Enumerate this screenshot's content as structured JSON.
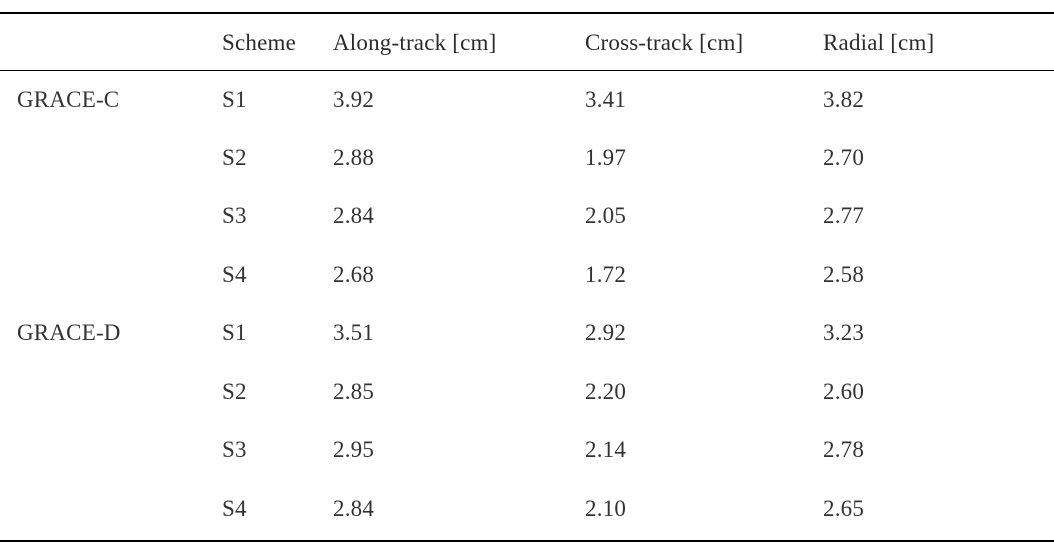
{
  "table": {
    "headers": [
      "",
      "Scheme",
      "Along-track [cm]",
      "Cross-track [cm]",
      "Radial [cm]"
    ],
    "rows": [
      [
        "GRACE-C",
        "S1",
        "3.92",
        "3.41",
        "3.82"
      ],
      [
        "",
        "S2",
        "2.88",
        "1.97",
        "2.70"
      ],
      [
        "",
        "S3",
        "2.84",
        "2.05",
        "2.77"
      ],
      [
        "",
        "S4",
        "2.68",
        "1.72",
        "2.58"
      ],
      [
        "GRACE-D",
        "S1",
        "3.51",
        "2.92",
        "3.23"
      ],
      [
        "",
        "S2",
        "2.85",
        "2.20",
        "2.60"
      ],
      [
        "",
        "S3",
        "2.95",
        "2.14",
        "2.78"
      ],
      [
        "",
        "S4",
        "2.84",
        "2.10",
        "2.65"
      ]
    ]
  }
}
